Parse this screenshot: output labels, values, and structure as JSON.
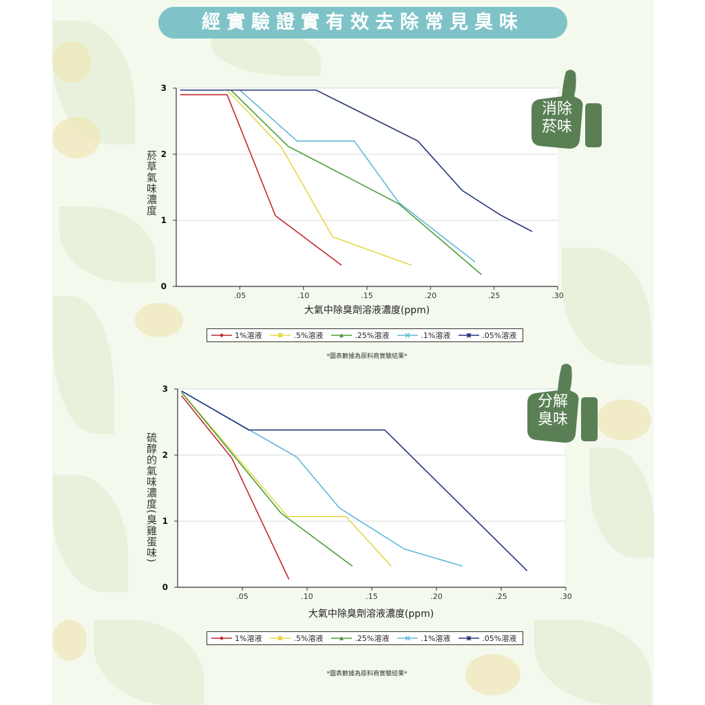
{
  "page": {
    "banner_title": "經實驗證實有效去除常見臭味",
    "colors": {
      "banner": "#7fc3c8",
      "badge": "#5a7f55",
      "panel": "#f4f9ee"
    }
  },
  "badges": [
    {
      "label_line1": "消除",
      "label_line2": "菸味",
      "icon": "thumbs-up-icon"
    },
    {
      "label_line1": "分解",
      "label_line2": "臭味",
      "icon": "thumbs-up-icon"
    }
  ],
  "notes": [
    "*圖表數據為原料商實驗結果*",
    "*圖表數據為原料商實驗結果*"
  ],
  "chart_data": [
    {
      "type": "line",
      "ylabel": "菸草氣味濃度",
      "xlabel": "大氣中除臭劑溶液濃度(ppm)",
      "xlim": [
        0,
        0.3
      ],
      "ylim": [
        0,
        3
      ],
      "x_tick_labels": [
        ".05",
        ".10",
        ".15",
        ".20",
        ".25",
        ".30"
      ],
      "y_tick_labels": [
        "0",
        "1",
        "2",
        "3"
      ],
      "grid": true,
      "legend_position": "bottom",
      "series": [
        {
          "name": "1%溶液",
          "color": "#c0272d",
          "marker": "diamond",
          "x": [
            0.003,
            0.04,
            0.078,
            0.13
          ],
          "y": [
            2.9,
            2.9,
            1.07,
            0.32
          ]
        },
        {
          "name": ".5%溶液",
          "color": "#e2d84a",
          "marker": "square",
          "x": [
            0.04,
            0.083,
            0.123,
            0.185
          ],
          "y": [
            2.97,
            2.1,
            0.75,
            0.32
          ]
        },
        {
          "name": ".25%溶液",
          "color": "#4d9c3a",
          "marker": "triangle",
          "x": [
            0.043,
            0.088,
            0.175,
            0.24
          ],
          "y": [
            2.97,
            2.12,
            1.25,
            0.18
          ]
        },
        {
          "name": ".1%溶液",
          "color": "#5fb7d8",
          "marker": "x",
          "x": [
            0.05,
            0.095,
            0.14,
            0.175,
            0.235
          ],
          "y": [
            2.97,
            2.2,
            2.2,
            1.27,
            0.37
          ]
        },
        {
          "name": ".05%溶液",
          "color": "#25357a",
          "marker": "star",
          "x": [
            0.003,
            0.11,
            0.19,
            0.225,
            0.255,
            0.28
          ],
          "y": [
            2.97,
            2.97,
            2.2,
            1.45,
            1.08,
            0.83
          ]
        }
      ]
    },
    {
      "type": "line",
      "ylabel": "硫醇的氣味濃度(臭雞蛋味)",
      "xlabel": "大氣中除臭劑溶液濃度(ppm)",
      "xlim": [
        0,
        0.3
      ],
      "ylim": [
        0,
        3
      ],
      "x_tick_labels": [
        ".05",
        ".10",
        ".15",
        ".20",
        ".25",
        ".30"
      ],
      "y_tick_labels": [
        "0",
        "1",
        "2",
        "3"
      ],
      "grid": true,
      "legend_position": "bottom",
      "series": [
        {
          "name": "1%溶液",
          "color": "#c0272d",
          "marker": "diamond",
          "x": [
            0.003,
            0.042,
            0.086
          ],
          "y": [
            2.9,
            1.95,
            0.12
          ]
        },
        {
          "name": ".5%溶液",
          "color": "#e2d84a",
          "marker": "square",
          "x": [
            0.003,
            0.085,
            0.13,
            0.165
          ],
          "y": [
            2.95,
            1.07,
            1.07,
            0.32
          ]
        },
        {
          "name": ".25%溶液",
          "color": "#4d9c3a",
          "marker": "triangle",
          "x": [
            0.003,
            0.08,
            0.135
          ],
          "y": [
            2.95,
            1.12,
            0.32
          ]
        },
        {
          "name": ".1%溶液",
          "color": "#5fb7d8",
          "marker": "x",
          "x": [
            0.003,
            0.092,
            0.125,
            0.175,
            0.22
          ],
          "y": [
            2.97,
            1.97,
            1.2,
            0.58,
            0.32
          ]
        },
        {
          "name": ".05%溶液",
          "color": "#25357a",
          "marker": "star",
          "x": [
            0.003,
            0.055,
            0.16,
            0.27
          ],
          "y": [
            2.97,
            2.38,
            2.38,
            0.25
          ]
        }
      ]
    }
  ]
}
